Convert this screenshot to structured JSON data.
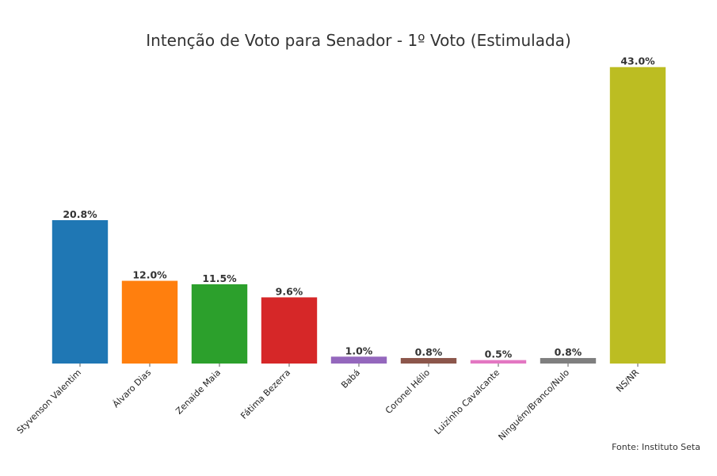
{
  "chart_data": {
    "type": "bar",
    "title": "Intenção de Voto para Senador - 1º Voto (Estimulada)",
    "xlabel": "",
    "ylabel": "",
    "ylim": [
      0,
      45.15
    ],
    "grid": false,
    "legend": "none",
    "categories": [
      "Styvenson Valentim",
      "Álvaro Dias",
      "Zenaide Maia",
      "Fátima Bezerra",
      "Babá",
      "Coronel Hélio",
      "Luizinho Cavalcante",
      "Ninguém/Branco/Nulo",
      "NS/NR"
    ],
    "values": [
      20.8,
      12.0,
      11.5,
      9.6,
      1.0,
      0.8,
      0.5,
      0.8,
      43.0
    ],
    "value_labels": [
      "20.8%",
      "12.0%",
      "11.5%",
      "9.6%",
      "1.0%",
      "0.8%",
      "0.5%",
      "0.8%",
      "43.0%"
    ],
    "colors": [
      "#1f77b4",
      "#ff7f0e",
      "#2ca02c",
      "#d62728",
      "#9467bd",
      "#8c564b",
      "#e377c2",
      "#7f7f7f",
      "#bcbd22"
    ],
    "source": "Fonte: Instituto Seta"
  }
}
